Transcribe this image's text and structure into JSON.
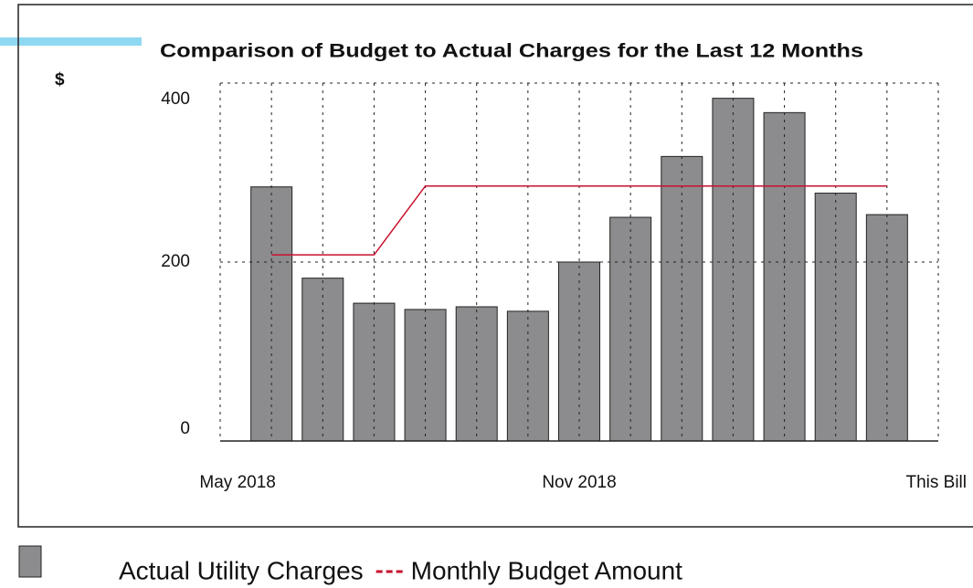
{
  "chart_data": {
    "type": "bar",
    "title": "Comparison of Budget to Actual Charges for the Last 12 Months",
    "y_label": "$",
    "categories": [
      "May 2018",
      null,
      null,
      null,
      null,
      null,
      "Nov 2018",
      null,
      null,
      null,
      null,
      null,
      "This Bill"
    ],
    "series": [
      {
        "name": "Actual Utility Charges",
        "type": "bar",
        "color": "#8c8c8e",
        "values": [
          284,
          182,
          154,
          147,
          150,
          145,
          200,
          250,
          318,
          383,
          367,
          277,
          253
        ]
      },
      {
        "name": "Monthly Budget Amount",
        "type": "line",
        "color": "#c8102e",
        "values": [
          208,
          208,
          208,
          285,
          285,
          285,
          285,
          285,
          285,
          285,
          285,
          285,
          285
        ]
      }
    ],
    "ylim": [
      0,
      400
    ],
    "yticks": [
      0,
      200,
      400
    ],
    "grid": true
  }
}
